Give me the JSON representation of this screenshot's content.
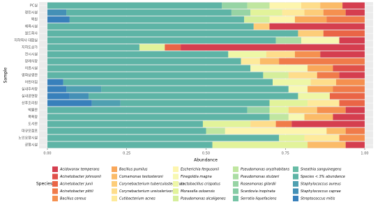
{
  "chart_data": {
    "type": "stacked-barh",
    "y_label": "Sample",
    "x_label": "Abundance",
    "legend_title": "Species",
    "categories": [
      "PC실",
      "정민시설",
      "목원",
      "체육시설",
      "월드회사",
      "지하역사 대합실",
      "지하도상가",
      "전시시설",
      "장례식장",
      "의료시설",
      "영화상영관",
      "어린이집",
      "실내주차장",
      "실내공연장",
      "산후조리원",
      "박물관",
      "목욕장",
      "도서관",
      "대규모점포",
      "노인요양시설",
      "공항시설"
    ],
    "xlim": [
      0,
      1
    ],
    "xticks": [
      {
        "value": 0,
        "label": "0.00"
      },
      {
        "value": 0.25,
        "label": "0.25"
      },
      {
        "value": 0.5,
        "label": "0.50"
      },
      {
        "value": 0.75,
        "label": "0.75"
      },
      {
        "value": 1,
        "label": "1.00"
      }
    ],
    "grid": true,
    "legend_position": "bottom",
    "series": [
      {
        "name": "Acidovorax temperans",
        "color": "#d53e4f",
        "values": [
          0.07,
          0.06,
          0,
          0.3,
          0,
          0.08,
          0.58,
          0.14,
          0,
          0,
          0.08,
          0,
          0,
          0,
          0,
          0.06,
          0.1,
          0.23,
          0,
          0,
          0.06
        ]
      },
      {
        "name": "Acinetobacter johnsonii",
        "color": "#e0504a",
        "values": [
          0,
          0,
          0,
          0,
          0,
          0,
          0,
          0,
          0,
          0.1,
          0,
          0,
          0,
          0,
          0,
          0,
          0,
          0,
          0,
          0,
          0
        ]
      },
      {
        "name": "Acinetobacter junii",
        "color": "#ea6546",
        "values": [
          0,
          0,
          0,
          0,
          0.13,
          0,
          0.05,
          0,
          0,
          0,
          0,
          0,
          0,
          0.11,
          0.08,
          0,
          0,
          0,
          0,
          0,
          0
        ]
      },
      {
        "name": "Acinetobacter pittii",
        "color": "#f07b4a",
        "values": [
          0,
          0,
          0.12,
          0,
          0,
          0,
          0,
          0,
          0.27,
          0,
          0.07,
          0,
          0.1,
          0,
          0,
          0,
          0,
          0.05,
          0.06,
          0,
          0
        ]
      },
      {
        "name": "Bacillus cereus",
        "color": "#f5904f",
        "values": [
          0,
          0.07,
          0,
          0,
          0,
          0,
          0,
          0.08,
          0,
          0,
          0,
          0.09,
          0,
          0,
          0,
          0.09,
          0,
          0,
          0,
          0.08,
          0
        ]
      },
      {
        "name": "Bacillus pumilus",
        "color": "#f9a75a",
        "values": [
          0,
          0,
          0.1,
          0,
          0,
          0,
          0,
          0,
          0,
          0.08,
          0,
          0,
          0.08,
          0,
          0,
          0,
          0,
          0,
          0,
          0,
          0
        ]
      },
      {
        "name": "Comamonas testosteroni",
        "color": "#fbbb68",
        "values": [
          0.07,
          0,
          0,
          0,
          0,
          0,
          0,
          0,
          0.06,
          0,
          0,
          0,
          0,
          0,
          0,
          0,
          0.09,
          0,
          0.06,
          0,
          0.12
        ]
      },
      {
        "name": "Corynebacterium tuberculostearicum",
        "color": "#fdcd79",
        "values": [
          0,
          0.06,
          0,
          0.05,
          0.08,
          0,
          0,
          0,
          0,
          0,
          0,
          0,
          0,
          0,
          0,
          0.09,
          0,
          0,
          0,
          0,
          0
        ]
      },
      {
        "name": "Corynebacterium ureicelerivorans",
        "color": "#fedd8b",
        "values": [
          0.06,
          0,
          0,
          0,
          0,
          0,
          0,
          0.09,
          0,
          0,
          0.09,
          0.08,
          0,
          0,
          0,
          0,
          0,
          0.08,
          0,
          0,
          0
        ]
      },
      {
        "name": "Cutibacterium acnes",
        "color": "#feea9b",
        "values": [
          0,
          0.07,
          0,
          0,
          0,
          0,
          0,
          0,
          0.06,
          0,
          0,
          0,
          0,
          0,
          0.1,
          0,
          0,
          0,
          0,
          0.11,
          0
        ]
      },
      {
        "name": "Escherichia fergusonii",
        "color": "#fdf5ae",
        "values": [
          0.1,
          0,
          0.08,
          0,
          0,
          0,
          0,
          0,
          0,
          0,
          0,
          0,
          0,
          0,
          0,
          0,
          0,
          0,
          0.32,
          0,
          0
        ]
      },
      {
        "name": "Finegoldia magna",
        "color": "#f7f8b2",
        "values": [
          0,
          0,
          0,
          0,
          0,
          0.12,
          0,
          0,
          0,
          0.18,
          0,
          0,
          0.06,
          0,
          0,
          0,
          0.05,
          0,
          0,
          0,
          0
        ]
      },
      {
        "name": "Lactobacillus crispatus",
        "color": "#eef7a6",
        "values": [
          0,
          0,
          0,
          0,
          0,
          0,
          0,
          0.12,
          0,
          0,
          0,
          0.12,
          0,
          0.1,
          0,
          0,
          0,
          0,
          0,
          0,
          0
        ]
      },
      {
        "name": "Moraxella osloensis",
        "color": "#e2f39a",
        "values": [
          0,
          0.1,
          0,
          0,
          0,
          0,
          0.08,
          0,
          0,
          0,
          0,
          0,
          0,
          0,
          0.12,
          0.06,
          0,
          0.15,
          0,
          0.08,
          0.3
        ]
      },
      {
        "name": "Pseudomonas alcaligenes",
        "color": "#d5ee9b",
        "values": [
          0,
          0,
          0.08,
          0,
          0,
          0,
          0,
          0,
          0,
          0,
          0.08,
          0,
          0,
          0,
          0,
          0,
          0,
          0,
          0,
          0,
          0
        ]
      },
      {
        "name": "Pseudomonas oryzihabitans",
        "color": "#c0e6a0",
        "values": [
          0.07,
          0,
          0,
          0,
          0,
          0,
          0,
          0,
          0,
          0,
          0,
          0,
          0,
          0,
          0,
          0,
          0.06,
          0,
          0.06,
          0,
          0
        ]
      },
      {
        "name": "Pseudomonas stutzeri",
        "color": "#abdda4",
        "values": [
          0,
          0,
          0,
          0,
          0,
          0.08,
          0,
          0,
          0,
          0,
          0,
          0,
          0,
          0,
          0,
          0,
          0,
          0,
          0,
          0,
          0
        ]
      },
      {
        "name": "Roseomonas gilardii",
        "color": "#97d4a4",
        "values": [
          0.08,
          0.06,
          0,
          0,
          0,
          0,
          0,
          0,
          0,
          0,
          0,
          0,
          0,
          0,
          0,
          0.07,
          0,
          0,
          0,
          0,
          0
        ]
      },
      {
        "name": "Scardovia inopinata",
        "color": "#86cca5",
        "values": [
          0,
          0,
          0,
          0,
          0,
          0,
          0,
          0,
          0,
          0,
          0,
          0,
          0,
          0,
          0,
          0,
          0,
          0,
          0,
          0,
          0
        ]
      },
      {
        "name": "Serratia liquefaciens",
        "color": "#75c4a5",
        "values": [
          0,
          0,
          0,
          0,
          0,
          0,
          0,
          0,
          0,
          0,
          0,
          0,
          0,
          0,
          0,
          0,
          0,
          0,
          0,
          0,
          0
        ]
      },
      {
        "name": "Sneathia sanguinegens",
        "color": "#68bca6",
        "values": [
          0,
          0,
          0,
          0,
          0,
          0,
          0,
          0,
          0,
          0,
          0,
          0,
          0,
          0,
          0,
          0,
          0,
          0,
          0,
          0,
          0
        ]
      },
      {
        "name": "Species < 3% abundance",
        "color": "#5eb4a6",
        "values": [
          0.55,
          0.52,
          0.55,
          0.65,
          0.79,
          0.72,
          0.29,
          0.57,
          0.61,
          0.64,
          0.68,
          0.66,
          0.59,
          0.66,
          0.47,
          0.63,
          0.7,
          0.49,
          0.5,
          0.73,
          0.52
        ]
      },
      {
        "name": "Staphylococcus aureus",
        "color": "#4fa0b1",
        "values": [
          0,
          0,
          0,
          0,
          0,
          0,
          0,
          0,
          0,
          0,
          0,
          0,
          0.11,
          0,
          0.09,
          0,
          0,
          0,
          0,
          0,
          0
        ]
      },
      {
        "name": "Staphylococcus caprae",
        "color": "#4490b6",
        "values": [
          0,
          0.06,
          0,
          0,
          0,
          0,
          0,
          0,
          0,
          0,
          0,
          0,
          0,
          0.06,
          0,
          0,
          0,
          0,
          0,
          0,
          0
        ]
      },
      {
        "name": "Streptococcus mitis",
        "color": "#3880bb",
        "values": [
          0,
          0,
          0.07,
          0,
          0,
          0,
          0,
          0,
          0,
          0,
          0,
          0.05,
          0.06,
          0.07,
          0.14,
          0,
          0,
          0,
          0,
          0,
          0
        ]
      }
    ]
  }
}
